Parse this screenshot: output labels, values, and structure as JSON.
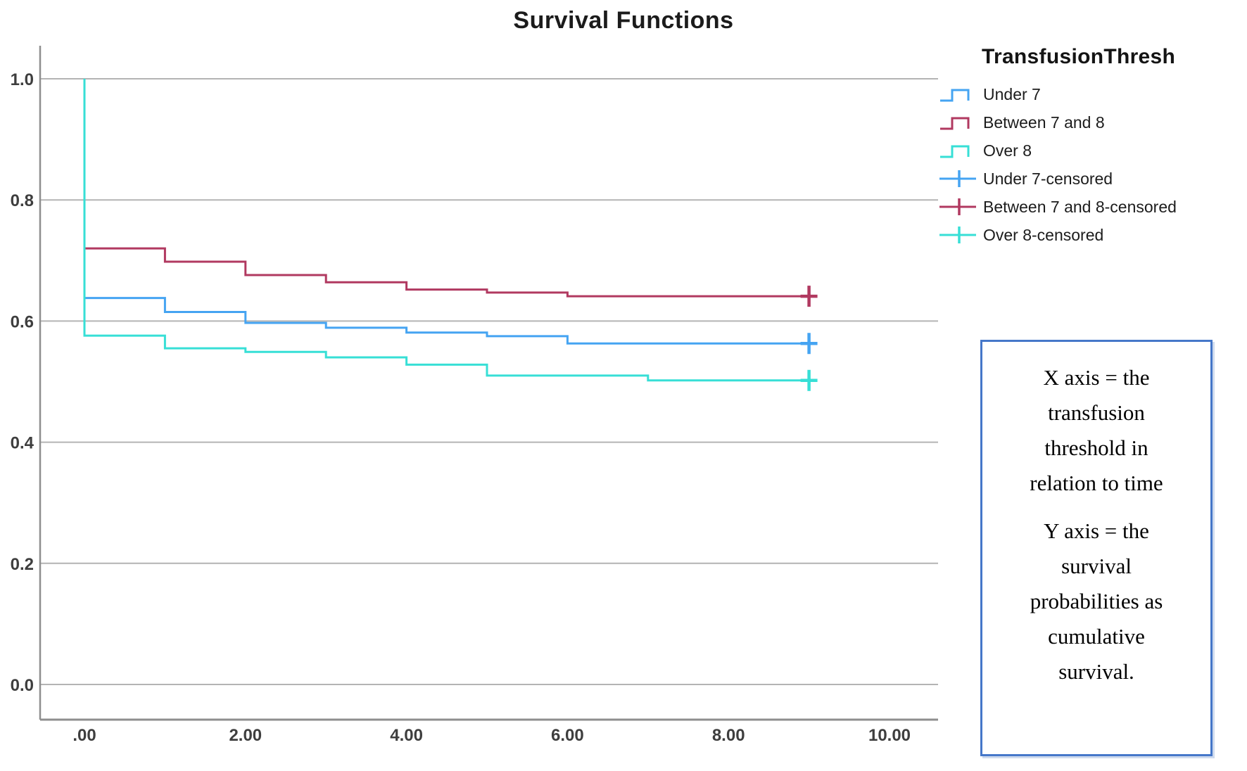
{
  "title": "Survival Functions",
  "legend": {
    "title": "TransfusionThresh",
    "items": [
      {
        "label": "Under 7",
        "type": "line",
        "color": "#45A4F2"
      },
      {
        "label": "Between 7 and 8",
        "type": "line",
        "color": "#B13960"
      },
      {
        "label": "Over 8",
        "type": "line",
        "color": "#37DFD6"
      },
      {
        "label": "Under 7-censored",
        "type": "censored",
        "color": "#45A4F2"
      },
      {
        "label": "Between 7 and 8-censored",
        "type": "censored",
        "color": "#B13960"
      },
      {
        "label": "Over 8-censored",
        "type": "censored",
        "color": "#37DFD6"
      }
    ]
  },
  "annotation_box": {
    "border_color": "#4577C9",
    "x_axis_lines": [
      "X axis = the",
      "transfusion",
      "threshold in",
      "relation to time"
    ],
    "y_axis_lines": [
      "Y axis = the",
      "survival",
      "probabilities as",
      "cumulative",
      "survival."
    ]
  },
  "chart_data": {
    "type": "line",
    "subtype": "kaplan-meier-step-survival",
    "title": "Survival Functions",
    "xlabel": "",
    "ylabel": "",
    "xlim": [
      -0.55,
      10.6
    ],
    "ylim": [
      -0.06,
      1.06
    ],
    "grid": "horizontal",
    "legend_position": "right",
    "x_ticks": {
      "values": [
        0,
        2,
        4,
        6,
        8,
        10
      ],
      "labels": [
        ".00",
        "2.00",
        "4.00",
        "6.00",
        "8.00",
        "10.00"
      ]
    },
    "y_ticks": {
      "values": [
        0.0,
        0.2,
        0.4,
        0.6,
        0.8,
        1.0
      ],
      "labels": [
        "0.0",
        "0.2",
        "0.4",
        "0.6",
        "0.8",
        "1.0"
      ]
    },
    "axis_color": "#8e8e8e",
    "grid_color": "#b4b4b4",
    "tick_label_color": "#3e3e3e",
    "series": [
      {
        "name": "Under 7",
        "color": "#45A4F2",
        "start": [
          0,
          1.0
        ],
        "drops": [
          [
            0,
            0.638
          ],
          [
            1,
            0.615
          ],
          [
            2,
            0.597
          ],
          [
            3,
            0.589
          ],
          [
            4,
            0.581
          ],
          [
            5,
            0.575
          ],
          [
            6,
            0.563
          ]
        ],
        "end_x": 9,
        "censored": [
          [
            9,
            0.563
          ]
        ]
      },
      {
        "name": "Between 7 and 8",
        "color": "#B13960",
        "start": [
          0,
          1.0
        ],
        "drops": [
          [
            0,
            0.72
          ],
          [
            1,
            0.698
          ],
          [
            2,
            0.676
          ],
          [
            3,
            0.664
          ],
          [
            4,
            0.652
          ],
          [
            5,
            0.647
          ],
          [
            6,
            0.641
          ]
        ],
        "end_x": 9,
        "censored": [
          [
            9,
            0.641
          ]
        ]
      },
      {
        "name": "Over 8",
        "color": "#37DFD6",
        "start": [
          0,
          1.0
        ],
        "drops": [
          [
            0,
            0.576
          ],
          [
            1,
            0.555
          ],
          [
            2,
            0.549
          ],
          [
            3,
            0.54
          ],
          [
            4,
            0.528
          ],
          [
            5,
            0.51
          ],
          [
            7,
            0.502
          ]
        ],
        "end_x": 9,
        "censored": [
          [
            9,
            0.502
          ]
        ]
      }
    ]
  }
}
